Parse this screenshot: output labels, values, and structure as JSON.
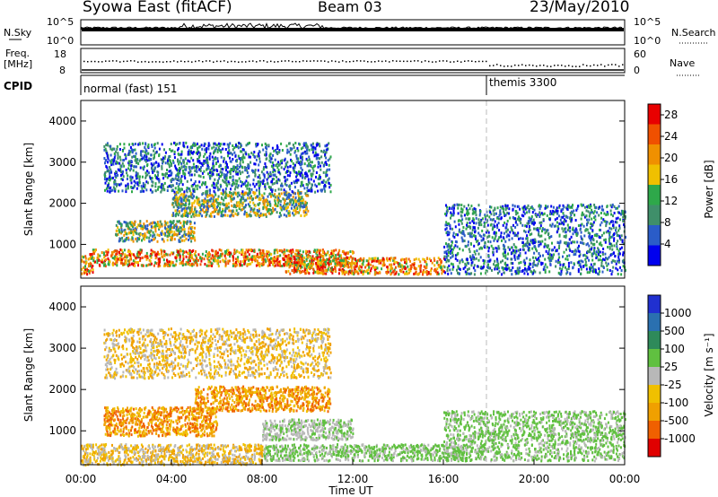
{
  "header": {
    "station": "Syowa East (fitACF)",
    "beam": "Beam 03",
    "date": "23/May/2010"
  },
  "top_panels": {
    "nsky": {
      "left_label": "N.Sky",
      "right_label": "N.Search",
      "left_ticks": [
        "10^5",
        "10^0"
      ],
      "right_ticks": [
        "10^5",
        "10^0"
      ]
    },
    "freq": {
      "left_label_line1": "Freq.",
      "left_label_line2": "[MHz]",
      "right_label": "Nave",
      "left_ticks": [
        "18",
        "8"
      ],
      "right_ticks": [
        "60",
        "0"
      ]
    },
    "cpid": {
      "label": "CPID",
      "modes": [
        {
          "name": "normal (fast) 151",
          "start_hour": 0,
          "end_hour": 18.0
        },
        {
          "name": "themis 3300",
          "start_hour": 18.0,
          "end_hour": 24
        }
      ]
    }
  },
  "chart_data": [
    {
      "type": "heatmap",
      "name": "Power",
      "ylabel": "Slant Range [km]",
      "xlabel": "",
      "yticks": [
        "1000",
        "2000",
        "3000",
        "4000"
      ],
      "ylim": [
        180,
        4500
      ],
      "xlim": [
        0,
        24
      ],
      "colorbar": {
        "label": "Power [dB]",
        "ticks": [
          "4",
          "8",
          "12",
          "16",
          "20",
          "24",
          "28"
        ],
        "range": [
          0,
          30
        ],
        "colors": [
          "#0000ee",
          "#2a5cc8",
          "#3f8f6a",
          "#2ea84a",
          "#f0c000",
          "#f09000",
          "#f05000",
          "#e80000"
        ]
      },
      "echo_regions": [
        {
          "hours": [
            0,
            0.5
          ],
          "range_km": [
            300,
            800
          ],
          "level": "high"
        },
        {
          "hours": [
            0.5,
            12
          ],
          "range_km": [
            500,
            900
          ],
          "level": "high"
        },
        {
          "hours": [
            1.5,
            5
          ],
          "range_km": [
            1100,
            1600
          ],
          "level": "medium"
        },
        {
          "hours": [
            4,
            10
          ],
          "range_km": [
            1700,
            2300
          ],
          "level": "medium"
        },
        {
          "hours": [
            9,
            16
          ],
          "range_km": [
            300,
            700
          ],
          "level": "high"
        },
        {
          "hours": [
            1,
            11
          ],
          "range_km": [
            2300,
            3500
          ],
          "level": "low"
        },
        {
          "hours": [
            16,
            24
          ],
          "range_km": [
            300,
            2000
          ],
          "level": "low"
        }
      ]
    },
    {
      "type": "heatmap",
      "name": "Velocity",
      "ylabel": "Slant Range [km]",
      "xlabel": "Time UT",
      "yticks": [
        "1000",
        "2000",
        "3000",
        "4000"
      ],
      "xticks": [
        "00:00",
        "04:00",
        "08:00",
        "12:00",
        "16:00",
        "20:00",
        "00:00"
      ],
      "ylim": [
        180,
        4500
      ],
      "xlim": [
        0,
        24
      ],
      "colorbar": {
        "label": "Velocity [m s⁻¹]",
        "ticks": [
          "1000",
          "500",
          "100",
          "25",
          "-25",
          "-100",
          "-500",
          "-1000"
        ],
        "colors": [
          "#2030d0",
          "#2a70b0",
          "#2e8a5a",
          "#60c040",
          "#b8b8b8",
          "#f0c000",
          "#f0a000",
          "#f06000",
          "#e00000"
        ]
      },
      "echo_regions": [
        {
          "hours": [
            1,
            6
          ],
          "range_km": [
            900,
            1600
          ],
          "velocity": "-500"
        },
        {
          "hours": [
            5,
            11
          ],
          "range_km": [
            1500,
            2100
          ],
          "velocity": "-500"
        },
        {
          "hours": [
            8,
            12
          ],
          "range_km": [
            800,
            1300
          ],
          "velocity": "25"
        },
        {
          "hours": [
            0,
            8
          ],
          "range_km": [
            200,
            700
          ],
          "velocity": "-100"
        },
        {
          "hours": [
            8,
            17
          ],
          "range_km": [
            300,
            700
          ],
          "velocity": "100"
        },
        {
          "hours": [
            1,
            11
          ],
          "range_km": [
            2300,
            3500
          ],
          "velocity": "-100"
        },
        {
          "hours": [
            16,
            24
          ],
          "range_km": [
            300,
            1500
          ],
          "velocity": "100"
        }
      ]
    }
  ]
}
